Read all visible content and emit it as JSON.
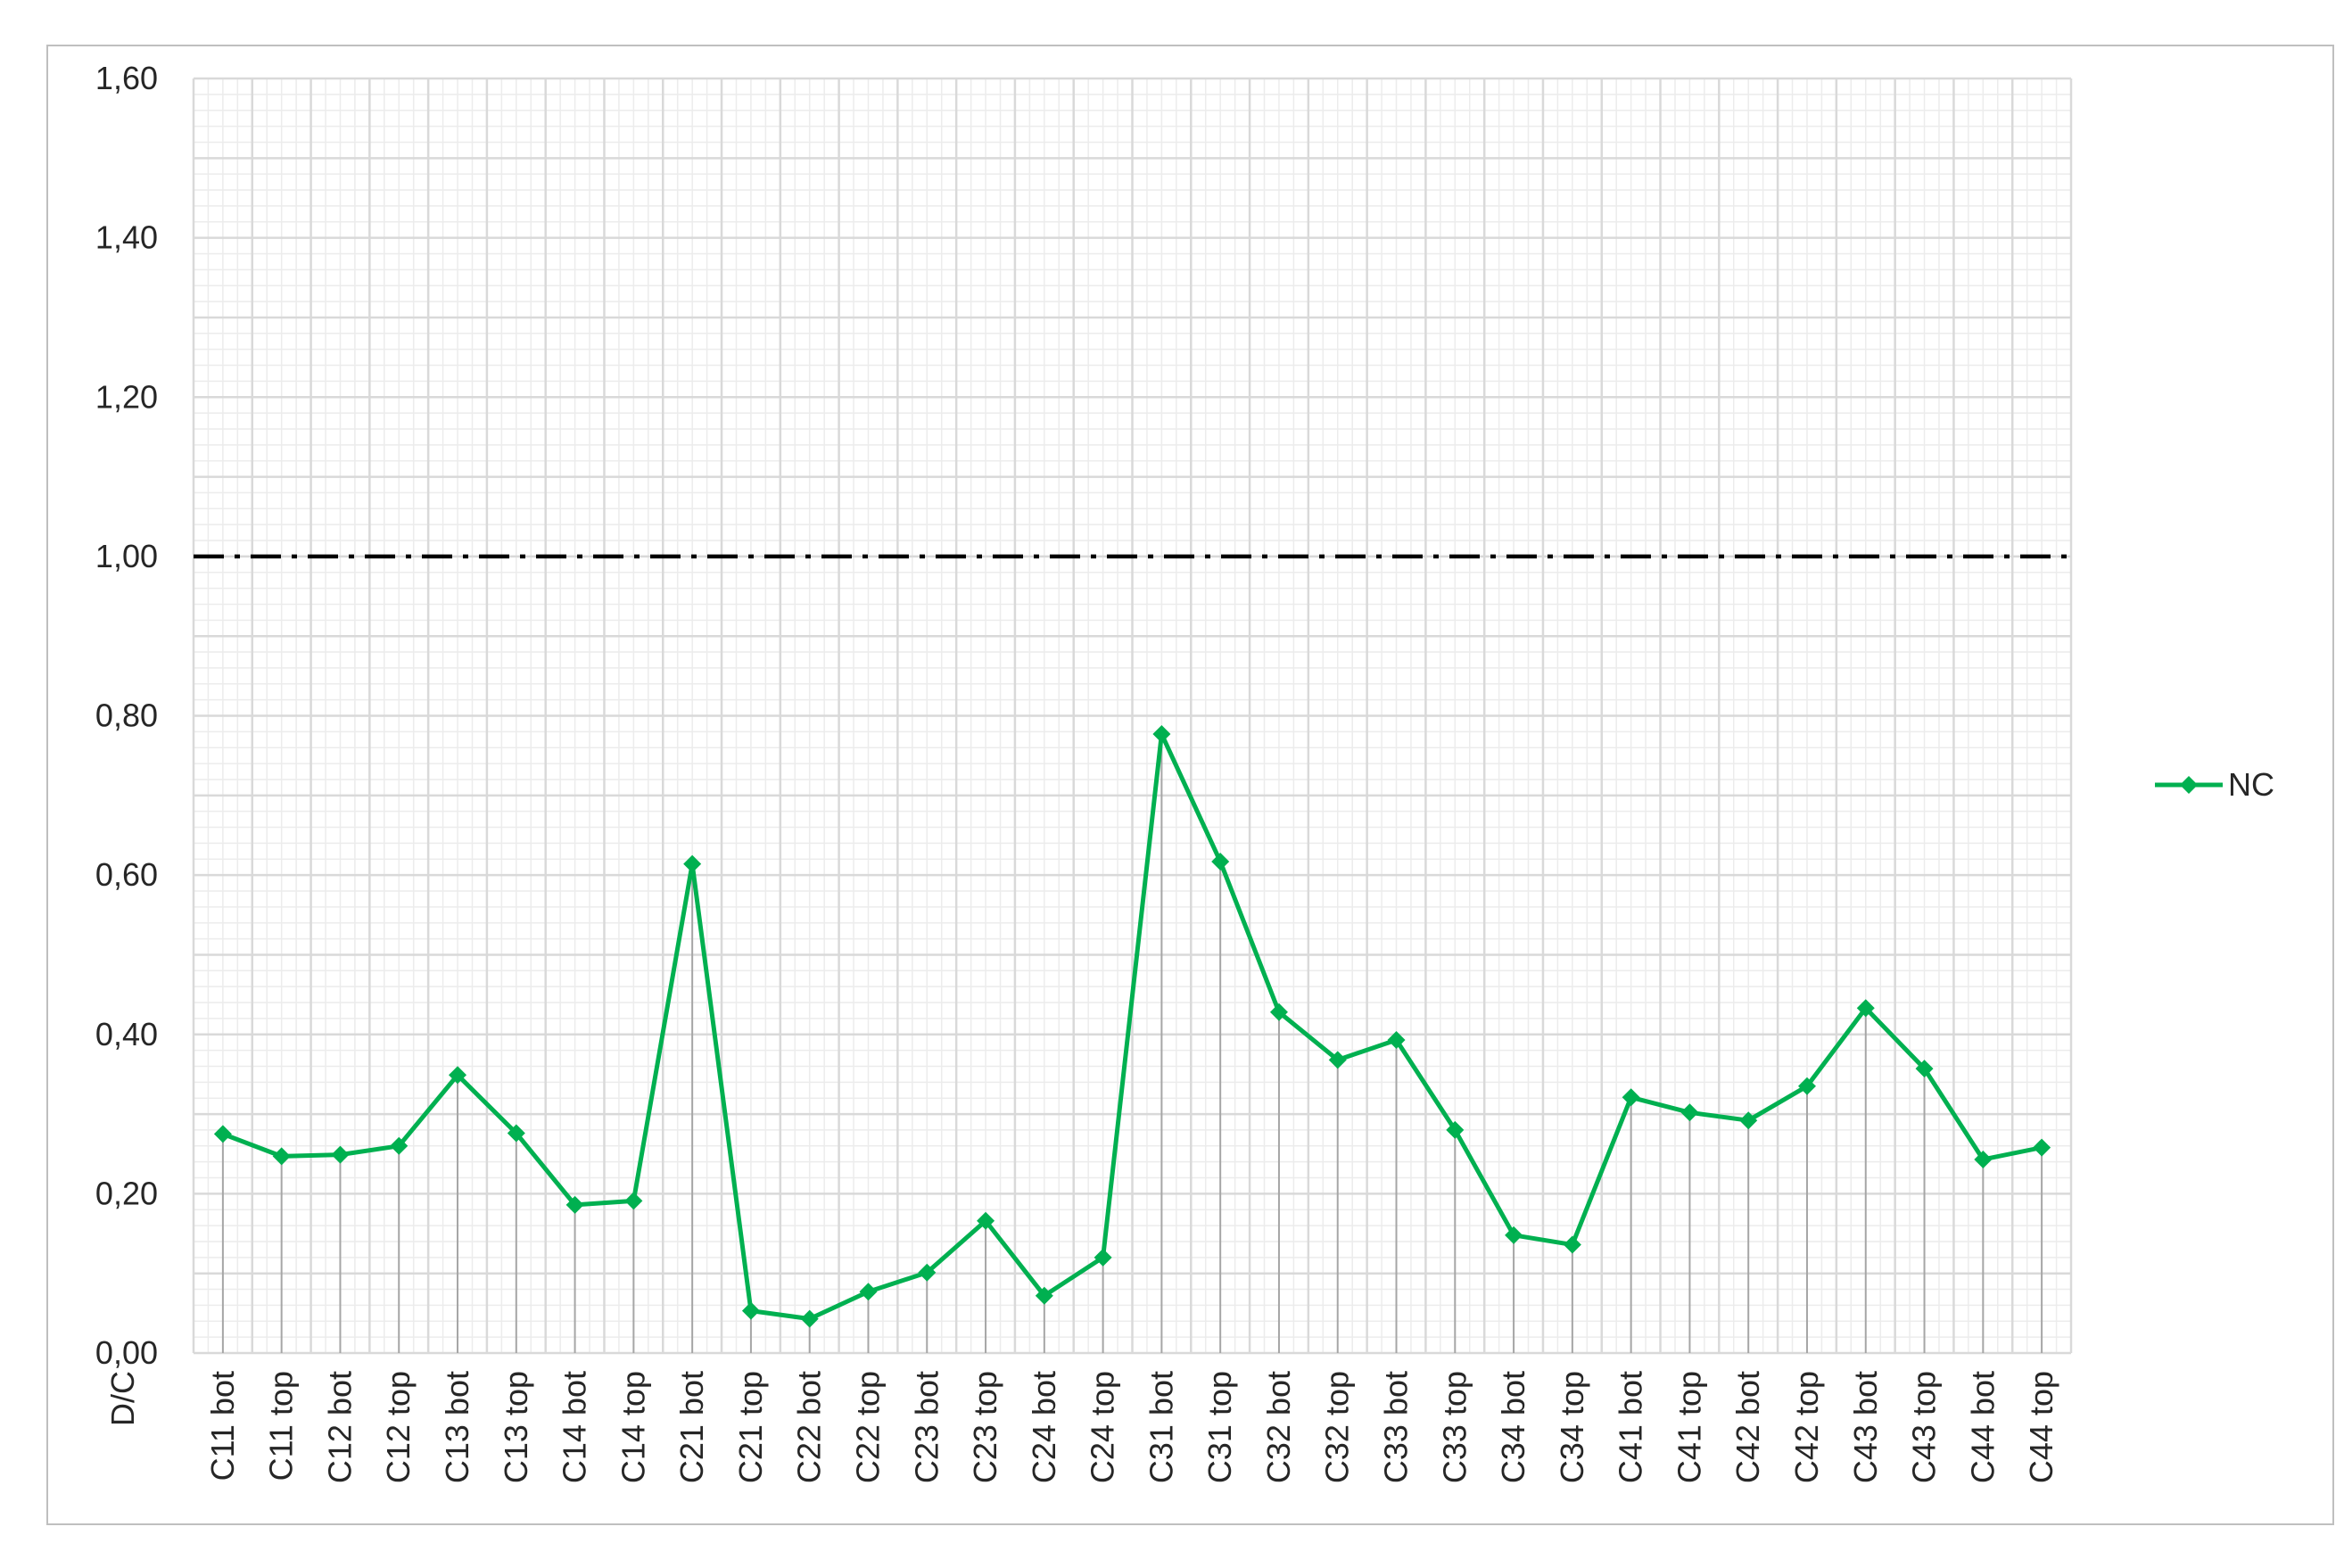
{
  "chart_data": {
    "type": "line",
    "title": "",
    "ylabel": "D/C",
    "xlabel": "",
    "ylim": [
      0,
      1.6
    ],
    "yticks": [
      "0,00",
      "0,20",
      "0,40",
      "0,60",
      "0,80",
      "1,00",
      "1,20",
      "1,40",
      "1,60"
    ],
    "grid": true,
    "reference_line": {
      "value": 1.0,
      "style": "dash-dot",
      "color": "#000000"
    },
    "legend_position": "right",
    "categories": [
      "C11 bot",
      "C11 top",
      "C12 bot",
      "C12 top",
      "C13 bot",
      "C13 top",
      "C14 bot",
      "C14 top",
      "C21 bot",
      "C21 top",
      "C22 bot",
      "C22 top",
      "C23 bot",
      "C23 top",
      "C24 bot",
      "C24 top",
      "C31 bot",
      "C31 top",
      "C32 bot",
      "C32 top",
      "C33 bot",
      "C33 top",
      "C34 bot",
      "C34 top",
      "C41 bot",
      "C41 top",
      "C42 bot",
      "C42 top",
      "C43 bot",
      "C43 top",
      "C44 bot",
      "C44 top"
    ],
    "series": [
      {
        "name": "NC",
        "color": "#00b050",
        "marker": "diamond",
        "values": [
          0.275,
          0.247,
          0.249,
          0.26,
          0.349,
          0.276,
          0.186,
          0.191,
          0.614,
          0.053,
          0.043,
          0.077,
          0.101,
          0.166,
          0.072,
          0.12,
          0.777,
          0.617,
          0.428,
          0.368,
          0.393,
          0.28,
          0.148,
          0.136,
          0.321,
          0.302,
          0.292,
          0.335,
          0.433,
          0.357,
          0.243,
          0.258
        ]
      }
    ]
  }
}
